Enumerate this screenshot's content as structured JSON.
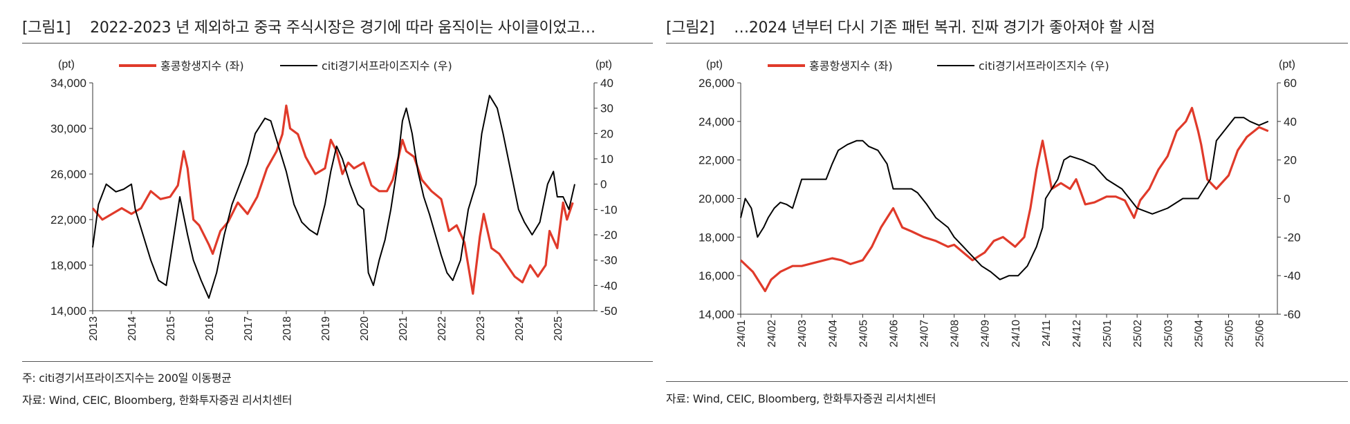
{
  "figures": [
    {
      "label": "[그림1]",
      "title": "2022-2023 년 제외하고 중국 주식시장은 경기에 따라 움직이는 사이클이었고…",
      "note": "주: citi경기서프라이즈지수는 200일 이동평균",
      "source": "자료: Wind, CEIC, Bloomberg, 한화투자증권 리서치센터"
    },
    {
      "label": "[그림2]",
      "title": "…2024 년부터 다시 기존 패턴 복귀. 진짜 경기가 좋아져야 할 시점",
      "source": "자료: Wind, CEIC, Bloomberg, 한화투자증권 리서치센터"
    }
  ],
  "colors": {
    "hsi": "#e03a2a",
    "citi": "#000000",
    "axis": "#333333"
  },
  "chart_data": [
    {
      "type": "line",
      "left_axis": {
        "unit": "(pt)",
        "ylim": [
          14000,
          34000
        ],
        "ticks": [
          "14,000",
          "18,000",
          "22,000",
          "26,000",
          "30,000",
          "34,000"
        ],
        "tick_values": [
          14000,
          18000,
          22000,
          26000,
          30000,
          34000
        ]
      },
      "right_axis": {
        "unit": "(pt)",
        "ylim": [
          -50,
          40
        ],
        "ticks": [
          "-50",
          "-40",
          "-30",
          "-20",
          "-10",
          "0",
          "10",
          "20",
          "30",
          "40"
        ],
        "tick_values": [
          -50,
          -40,
          -30,
          -20,
          -10,
          0,
          10,
          20,
          30,
          40
        ]
      },
      "xlim": [
        2013.0,
        2025.95
      ],
      "x_ticks": [
        "2013",
        "2014",
        "2015",
        "2016",
        "2017",
        "2018",
        "2019",
        "2020",
        "2021",
        "2022",
        "2023",
        "2024",
        "2025"
      ],
      "x_tick_values": [
        2013,
        2014,
        2015,
        2016,
        2017,
        2018,
        2019,
        2020,
        2021,
        2022,
        2023,
        2024,
        2025
      ],
      "series": [
        {
          "name": "홍콩항생지수 (좌)",
          "axis": "left",
          "x": [
            2013.0,
            2013.25,
            2013.5,
            2013.75,
            2014.0,
            2014.25,
            2014.5,
            2014.75,
            2015.0,
            2015.2,
            2015.35,
            2015.45,
            2015.6,
            2015.75,
            2016.0,
            2016.1,
            2016.3,
            2016.5,
            2016.75,
            2017.0,
            2017.25,
            2017.5,
            2017.75,
            2017.9,
            2018.0,
            2018.1,
            2018.3,
            2018.5,
            2018.75,
            2019.0,
            2019.15,
            2019.3,
            2019.45,
            2019.6,
            2019.75,
            2020.0,
            2020.2,
            2020.4,
            2020.6,
            2020.75,
            2020.9,
            2021.0,
            2021.1,
            2021.3,
            2021.5,
            2021.75,
            2022.0,
            2022.2,
            2022.4,
            2022.6,
            2022.82,
            2023.0,
            2023.1,
            2023.3,
            2023.5,
            2023.7,
            2023.9,
            2024.1,
            2024.3,
            2024.5,
            2024.7,
            2024.8,
            2025.0,
            2025.15,
            2025.25,
            2025.4
          ],
          "y": [
            23000,
            22000,
            22500,
            23000,
            22500,
            23000,
            24500,
            23800,
            24000,
            25000,
            28000,
            26500,
            22000,
            21500,
            19800,
            19000,
            21000,
            21800,
            23500,
            22500,
            24000,
            26500,
            28000,
            29500,
            32000,
            30000,
            29500,
            27500,
            26000,
            26500,
            29000,
            28000,
            26000,
            27000,
            26500,
            27000,
            25000,
            24500,
            24500,
            25500,
            27500,
            29000,
            28000,
            27500,
            25500,
            24500,
            23800,
            21000,
            21500,
            20000,
            15500,
            20500,
            22500,
            19500,
            19000,
            18000,
            17000,
            16500,
            18000,
            17000,
            18000,
            21000,
            19500,
            23500,
            22000,
            23500
          ]
        },
        {
          "name": "citi경기서프라이즈지수 (우)",
          "axis": "right",
          "x": [
            2013.0,
            2013.15,
            2013.35,
            2013.6,
            2013.8,
            2014.0,
            2014.1,
            2014.3,
            2014.5,
            2014.7,
            2014.9,
            2015.05,
            2015.25,
            2015.45,
            2015.6,
            2015.8,
            2016.0,
            2016.2,
            2016.4,
            2016.6,
            2016.8,
            2017.0,
            2017.2,
            2017.45,
            2017.6,
            2017.8,
            2018.0,
            2018.2,
            2018.4,
            2018.6,
            2018.8,
            2019.0,
            2019.15,
            2019.3,
            2019.45,
            2019.65,
            2019.85,
            2020.0,
            2020.12,
            2020.25,
            2020.4,
            2020.55,
            2020.7,
            2020.85,
            2021.0,
            2021.1,
            2021.25,
            2021.4,
            2021.55,
            2021.7,
            2021.85,
            2022.0,
            2022.15,
            2022.3,
            2022.5,
            2022.7,
            2022.9,
            2023.05,
            2023.25,
            2023.45,
            2023.6,
            2023.8,
            2024.0,
            2024.15,
            2024.35,
            2024.55,
            2024.75,
            2024.9,
            2025.0,
            2025.15,
            2025.3,
            2025.45
          ],
          "y": [
            -25,
            -8,
            0,
            -3,
            -2,
            0,
            -10,
            -20,
            -30,
            -38,
            -40,
            -25,
            -5,
            -20,
            -30,
            -38,
            -45,
            -35,
            -20,
            -8,
            0,
            8,
            20,
            26,
            25,
            15,
            5,
            -8,
            -15,
            -18,
            -20,
            -8,
            5,
            15,
            10,
            0,
            -8,
            -10,
            -35,
            -40,
            -30,
            -22,
            -10,
            5,
            25,
            30,
            20,
            5,
            -5,
            -12,
            -20,
            -28,
            -35,
            -38,
            -30,
            -10,
            0,
            20,
            35,
            30,
            20,
            5,
            -10,
            -15,
            -20,
            -15,
            0,
            5,
            -5,
            -5,
            -10,
            0
          ]
        }
      ]
    },
    {
      "type": "line",
      "left_axis": {
        "unit": "(pt)",
        "ylim": [
          14000,
          26000
        ],
        "ticks": [
          "14,000",
          "16,000",
          "18,000",
          "20,000",
          "22,000",
          "24,000",
          "26,000"
        ],
        "tick_values": [
          14000,
          16000,
          18000,
          20000,
          22000,
          24000,
          26000
        ]
      },
      "right_axis": {
        "unit": "(pt)",
        "ylim": [
          -60,
          60
        ],
        "ticks": [
          "-60",
          "-40",
          "-20",
          "0",
          "20",
          "40",
          "60"
        ],
        "tick_values": [
          -60,
          -40,
          -20,
          0,
          20,
          40,
          60
        ]
      },
      "xlim": [
        0,
        17.6
      ],
      "x_ticks": [
        "24/01",
        "24/02",
        "24/03",
        "24/04",
        "24/05",
        "24/06",
        "24/07",
        "24/08",
        "24/09",
        "24/10",
        "24/11",
        "24/12",
        "25/01",
        "25/02",
        "25/03",
        "25/04",
        "25/05",
        "25/06"
      ],
      "x_tick_values": [
        0,
        1,
        2,
        3,
        4,
        5,
        6,
        7,
        8,
        9,
        10,
        11,
        12,
        13,
        14,
        15,
        16,
        17
      ],
      "series": [
        {
          "name": "홍콩항생지수 (좌)",
          "axis": "left",
          "x": [
            0,
            0.4,
            0.8,
            1.0,
            1.3,
            1.7,
            2.0,
            2.5,
            3.0,
            3.3,
            3.6,
            4.0,
            4.3,
            4.6,
            5.0,
            5.3,
            5.6,
            6.0,
            6.4,
            6.8,
            7.0,
            7.3,
            7.6,
            8.0,
            8.3,
            8.6,
            9.0,
            9.3,
            9.5,
            9.7,
            9.9,
            10.2,
            10.5,
            10.8,
            11.0,
            11.3,
            11.6,
            12.0,
            12.3,
            12.6,
            12.9,
            13.1,
            13.4,
            13.7,
            14.0,
            14.3,
            14.6,
            14.8,
            15.0,
            15.1,
            15.3,
            15.6,
            16.0,
            16.3,
            16.6,
            17.0,
            17.3
          ],
          "y": [
            16800,
            16200,
            15200,
            15800,
            16200,
            16500,
            16500,
            16700,
            16900,
            16800,
            16600,
            16800,
            17500,
            18500,
            19500,
            18500,
            18300,
            18000,
            17800,
            17500,
            17600,
            17200,
            16800,
            17200,
            17800,
            18000,
            17500,
            18000,
            19500,
            21500,
            23000,
            20500,
            20800,
            20500,
            21000,
            19700,
            19800,
            20100,
            20100,
            19900,
            19000,
            19900,
            20500,
            21500,
            22200,
            23500,
            24000,
            24700,
            23500,
            22800,
            21000,
            20500,
            21200,
            22500,
            23200,
            23700,
            23500
          ]
        },
        {
          "name": "citi경기서프라이즈지수 (우)",
          "axis": "right",
          "x": [
            0,
            0.15,
            0.35,
            0.55,
            0.75,
            0.9,
            1.1,
            1.3,
            1.5,
            1.7,
            2.0,
            2.1,
            2.4,
            2.6,
            2.8,
            3.0,
            3.2,
            3.5,
            3.8,
            4.0,
            4.2,
            4.5,
            4.8,
            5.0,
            5.3,
            5.6,
            5.8,
            6.1,
            6.4,
            6.8,
            7.0,
            7.3,
            7.6,
            7.9,
            8.2,
            8.5,
            8.8,
            9.1,
            9.4,
            9.7,
            9.9,
            10.0,
            10.2,
            10.4,
            10.6,
            10.8,
            11.2,
            11.6,
            12.0,
            12.5,
            13.0,
            13.5,
            14.0,
            14.5,
            15.0,
            15.2,
            15.4,
            15.6,
            16.0,
            16.2,
            16.5,
            16.7,
            17.0,
            17.3
          ],
          "y": [
            -10,
            0,
            -5,
            -20,
            -15,
            -10,
            -5,
            -2,
            -3,
            -5,
            10,
            10,
            10,
            10,
            10,
            18,
            25,
            28,
            30,
            30,
            27,
            25,
            18,
            5,
            5,
            5,
            3,
            -3,
            -10,
            -15,
            -20,
            -25,
            -30,
            -35,
            -38,
            -42,
            -40,
            -40,
            -35,
            -25,
            -15,
            0,
            5,
            10,
            20,
            22,
            20,
            17,
            10,
            5,
            -5,
            -8,
            -5,
            0,
            0,
            5,
            10,
            30,
            38,
            42,
            42,
            40,
            38,
            40
          ]
        }
      ]
    }
  ]
}
